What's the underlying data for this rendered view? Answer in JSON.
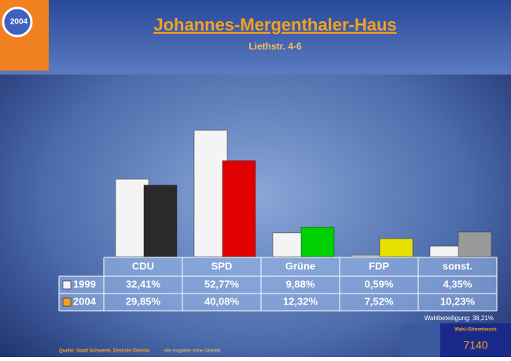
{
  "chart_data": {
    "type": "bar",
    "title": "Johannes-Mergenthaler-Haus",
    "subtitle": "Liethstr. 4-6",
    "categories": [
      "CDU",
      "SPD",
      "Grüne",
      "FDP",
      "sonst."
    ],
    "series": [
      {
        "name": "1999",
        "color": "#f4f4f4",
        "colors": [
          "#f4f4f4",
          "#f4f4f4",
          "#f4f4f4",
          "#f4f4f4",
          "#f4f4f4"
        ],
        "values": [
          32.41,
          52.77,
          9.88,
          0.59,
          4.35
        ],
        "value_labels": [
          "32,41%",
          "52,77%",
          "9,88%",
          "0,59%",
          "4,35%"
        ]
      },
      {
        "name": "2004",
        "color": "#f5a020",
        "colors": [
          "#2a2a2a",
          "#e00000",
          "#00d000",
          "#e8e000",
          "#9a9a9a"
        ],
        "values": [
          29.85,
          40.08,
          12.32,
          7.52,
          10.23
        ],
        "value_labels": [
          "29,85%",
          "40,08%",
          "12,32%",
          "7,52%",
          "10,23%"
        ]
      }
    ],
    "logo": "2004",
    "turnout": "Wahlbeteiligung: 38,21%",
    "source": "Quelle: Stadt Schwerte, Zentrale Dienste",
    "disclaimer": "- alle Angaben ohne Gewähr",
    "district_label": "Wahl-/Stimmbezirk",
    "district": "7140"
  }
}
